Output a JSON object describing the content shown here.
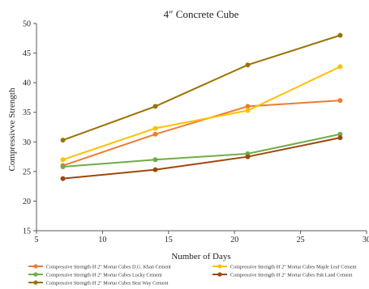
{
  "chart_data": {
    "type": "line",
    "title": "4″ Concrete Cube",
    "xlabel": "Number of Days",
    "ylabel": "Compressivve Strength",
    "xlim": [
      5,
      30
    ],
    "ylim": [
      15,
      50
    ],
    "x_ticks": [
      5,
      10,
      15,
      20,
      25,
      30
    ],
    "y_ticks": [
      15,
      20,
      25,
      30,
      35,
      40,
      45,
      50
    ],
    "grid": false,
    "legend_position": "bottom",
    "x": [
      7,
      14,
      21,
      28
    ],
    "series": [
      {
        "name": "Compressive Strength 0f 2\" Mortar Cubes D.G. Khan Cement",
        "color": "#ED7D31",
        "values": [
          26.0,
          31.3,
          36.0,
          37.0
        ]
      },
      {
        "name": "Compressive Strength 0f 2\" Mortar Cubes Maple Leaf Cement",
        "color": "#FFC000",
        "values": [
          27.0,
          32.3,
          35.3,
          42.7
        ]
      },
      {
        "name": "Compressive Strength 0f 2\" Mortar Cubes Lucky Cement",
        "color": "#70AD47",
        "values": [
          25.8,
          27.0,
          28.0,
          31.3
        ]
      },
      {
        "name": "Compressive Strength 0f 2\" Mortar Cubes Pak Land Cement",
        "color": "#9E480E",
        "values": [
          23.8,
          25.3,
          27.5,
          30.7
        ]
      },
      {
        "name": "Compressive Strength 0f 2\" Mortar Cubes Best Way Cement",
        "color": "#997300",
        "values": [
          30.3,
          36.0,
          43.0,
          48.0
        ]
      }
    ]
  }
}
